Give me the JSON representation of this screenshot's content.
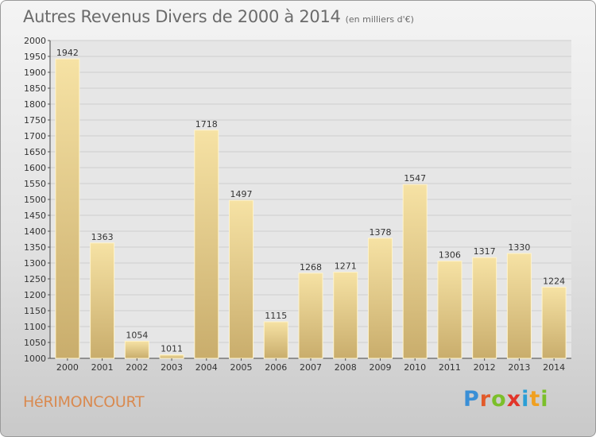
{
  "header": {
    "title": "Autres Revenus Divers de 2000 à 2014",
    "subtitle": "(en milliers d'€)"
  },
  "footer": {
    "city": "HéRIMONCOURT",
    "logo_letters": [
      "P",
      "r",
      "o",
      "x",
      "i",
      "t",
      "i"
    ],
    "logo_colors": [
      "#3a8fd6",
      "#e25a2a",
      "#7bbf2a",
      "#e2352a",
      "#2a9fd6",
      "#f0a020",
      "#7bbf2a"
    ]
  },
  "colors": {
    "bar_light": "#f6e2a4",
    "bar_dark": "#c9ad6c",
    "bar_edge": "#fff4cc",
    "plot_bg": "#e6e6e6",
    "grid": "#cfcfcf"
  },
  "chart_data": {
    "type": "bar",
    "categories": [
      "2000",
      "2001",
      "2002",
      "2003",
      "2004",
      "2005",
      "2006",
      "2007",
      "2008",
      "2009",
      "2010",
      "2011",
      "2012",
      "2013",
      "2014"
    ],
    "values": [
      1942,
      1363,
      1054,
      1011,
      1718,
      1497,
      1115,
      1268,
      1271,
      1378,
      1547,
      1306,
      1317,
      1330,
      1224
    ],
    "ylim": [
      1000,
      2000
    ],
    "ytick_step": 50,
    "grid": true
  }
}
